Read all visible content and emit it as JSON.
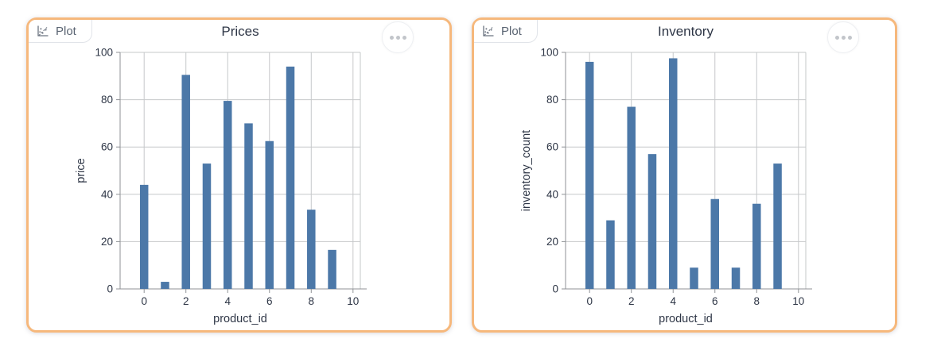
{
  "cards": [
    {
      "badge": {
        "label": "Plot",
        "icon": "scatter-plot-icon"
      },
      "menu": {
        "icon": "ellipsis-icon"
      }
    },
    {
      "badge": {
        "label": "Plot",
        "icon": "scatter-plot-icon"
      },
      "menu": {
        "icon": "ellipsis-icon"
      }
    }
  ],
  "chart_data": [
    {
      "type": "bar",
      "title": "Prices",
      "xlabel": "product_id",
      "ylabel": "price",
      "categories": [
        0,
        1,
        2,
        3,
        4,
        5,
        6,
        7,
        8,
        9
      ],
      "values": [
        44,
        3,
        90.5,
        53,
        79.5,
        70,
        62.5,
        94,
        33.5,
        16.5
      ],
      "xlim": [
        -1.15,
        10.35
      ],
      "ylim": [
        0,
        100
      ],
      "xticks": [
        0,
        2,
        4,
        6,
        8,
        10
      ],
      "yticks": [
        0,
        20,
        40,
        60,
        80,
        100
      ],
      "grid": true,
      "legend": null
    },
    {
      "type": "bar",
      "title": "Inventory",
      "xlabel": "product_id",
      "ylabel": "inventory_count",
      "categories": [
        0,
        1,
        2,
        3,
        4,
        5,
        6,
        7,
        8,
        9
      ],
      "values": [
        96,
        29,
        77,
        57,
        97.5,
        9,
        38,
        9,
        36,
        53
      ],
      "xlim": [
        -1.15,
        10.35
      ],
      "ylim": [
        0,
        100
      ],
      "xticks": [
        0,
        2,
        4,
        6,
        8,
        10
      ],
      "yticks": [
        0,
        20,
        40,
        60,
        80,
        100
      ],
      "grid": true,
      "legend": null
    }
  ],
  "colors": {
    "card_border": "#f6b87c",
    "bar": "#4c78a8",
    "grid": "#c6c8ca",
    "axis": "#8f9296",
    "chart_text": "#2e3646",
    "badge_text": "#5a6472",
    "dot": "#c2c5ca"
  }
}
